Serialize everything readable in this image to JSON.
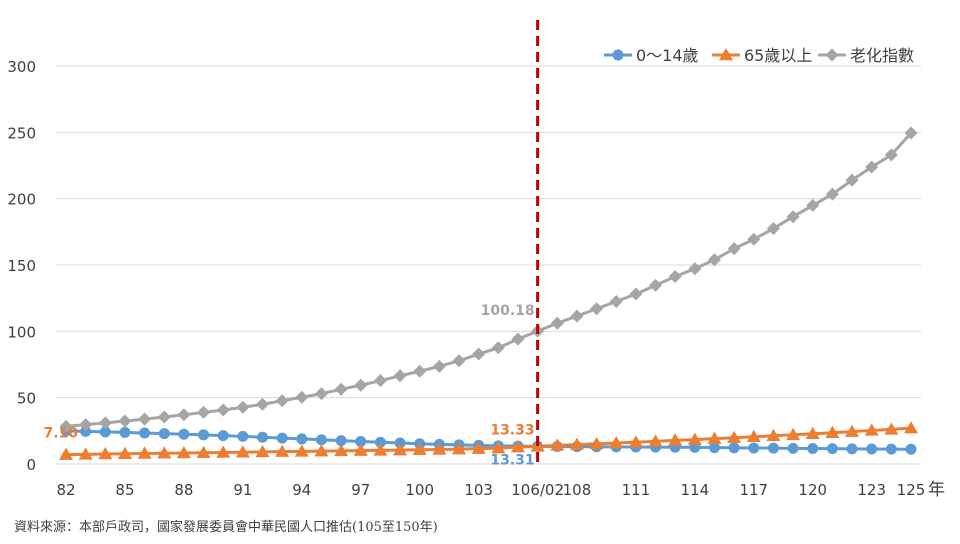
{
  "chart_data": {
    "type": "line",
    "title": "",
    "xlabel": "",
    "ylabel": "",
    "x_unit": "年",
    "ylim": [
      0,
      300
    ],
    "yticks": [
      0,
      50,
      100,
      150,
      200,
      250,
      300
    ],
    "xtick_labels": [
      "82",
      "85",
      "88",
      "91",
      "94",
      "97",
      "100",
      "103",
      "106/02",
      "108",
      "111",
      "114",
      "117",
      "120",
      "123",
      "125"
    ],
    "grid": "horizontal",
    "legend": "top-right",
    "marker_line": {
      "x": "106/02",
      "color": "#c00000",
      "style": "dashed"
    },
    "x": [
      "82",
      "83",
      "84",
      "85",
      "86",
      "87",
      "88",
      "89",
      "90",
      "91",
      "92",
      "93",
      "94",
      "95",
      "96",
      "97",
      "98",
      "99",
      "100",
      "101",
      "102",
      "103",
      "104",
      "105",
      "106/02",
      "107",
      "108",
      "109",
      "110",
      "111",
      "112",
      "113",
      "114",
      "115",
      "116",
      "117",
      "118",
      "119",
      "120",
      "121",
      "122",
      "123",
      "124",
      "125"
    ],
    "series": [
      {
        "name": "0～14歲",
        "color": "#5b9bd5",
        "marker": "circle",
        "values": [
          25.0,
          24.6,
          24.2,
          23.8,
          23.4,
          22.9,
          22.4,
          22.0,
          21.4,
          20.8,
          20.2,
          19.5,
          18.9,
          18.3,
          17.6,
          17.0,
          16.4,
          15.8,
          15.3,
          14.8,
          14.4,
          14.0,
          13.7,
          13.5,
          13.31,
          13.2,
          13.1,
          13.0,
          12.9,
          12.8,
          12.7,
          12.6,
          12.5,
          12.4,
          12.2,
          12.1,
          12.0,
          11.8,
          11.7,
          11.6,
          11.4,
          11.3,
          11.2,
          11.1
        ],
        "data_labels": [
          {
            "index": 24,
            "text": "13.31"
          }
        ]
      },
      {
        "name": "65歲以上",
        "color": "#ed7d31",
        "marker": "triangle",
        "values": [
          7.1,
          7.3,
          7.5,
          7.7,
          7.9,
          8.1,
          8.3,
          8.5,
          8.7,
          8.9,
          9.1,
          9.3,
          9.5,
          9.7,
          9.9,
          10.1,
          10.3,
          10.5,
          10.7,
          10.9,
          11.2,
          11.6,
          12.0,
          12.7,
          13.33,
          14.0,
          14.6,
          15.2,
          15.8,
          16.4,
          17.1,
          17.8,
          18.4,
          19.1,
          19.8,
          20.5,
          21.3,
          22.0,
          22.8,
          23.6,
          24.4,
          25.3,
          26.1,
          27.0
        ],
        "data_labels": [
          {
            "index": 0,
            "text": "7.10"
          },
          {
            "index": 24,
            "text": "13.33"
          }
        ]
      },
      {
        "name": "老化指數",
        "color": "#a5a5a5",
        "marker": "diamond",
        "values": [
          28.4,
          29.7,
          31.0,
          32.4,
          33.8,
          35.4,
          37.1,
          38.9,
          40.7,
          42.8,
          45.0,
          47.7,
          50.3,
          53.0,
          56.3,
          59.4,
          62.8,
          66.5,
          69.9,
          73.6,
          77.8,
          82.9,
          87.6,
          94.1,
          100.18,
          106.1,
          111.5,
          117.0,
          122.5,
          128.1,
          134.6,
          141.3,
          147.2,
          154.0,
          162.3,
          169.4,
          177.5,
          186.4,
          194.9,
          203.4,
          214.0,
          223.9,
          233.0,
          249.5
        ],
        "data_labels": [
          {
            "index": 24,
            "text": "100.18"
          }
        ]
      }
    ]
  },
  "source_note": "資料來源：本部戶政司，國家發展委員會中華民國人口推估(105至150年)"
}
